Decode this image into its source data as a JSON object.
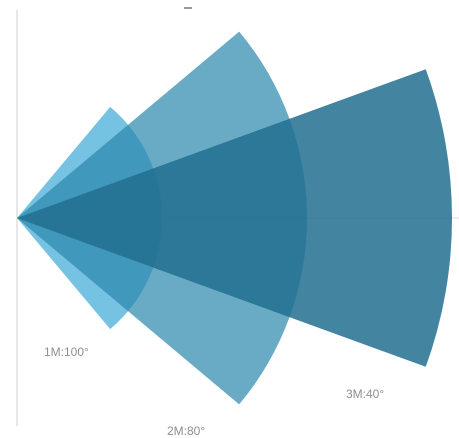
{
  "diagram": {
    "type": "coverage-fan",
    "sectors": [
      {
        "label": "1M:100°",
        "range_m": 1,
        "angle_deg": 100,
        "color": "#3ba8d6",
        "opacity": 0.7
      },
      {
        "label": "2M:80°",
        "range_m": 2,
        "angle_deg": 80,
        "color": "#2a88ad",
        "opacity": 0.7
      },
      {
        "label": "3M:40°",
        "range_m": 3,
        "angle_deg": 40,
        "color": "#226f8f",
        "opacity": 0.85
      }
    ],
    "colors": {
      "axis": "#cfcfcf",
      "label_text": "#8f8f8f"
    }
  }
}
